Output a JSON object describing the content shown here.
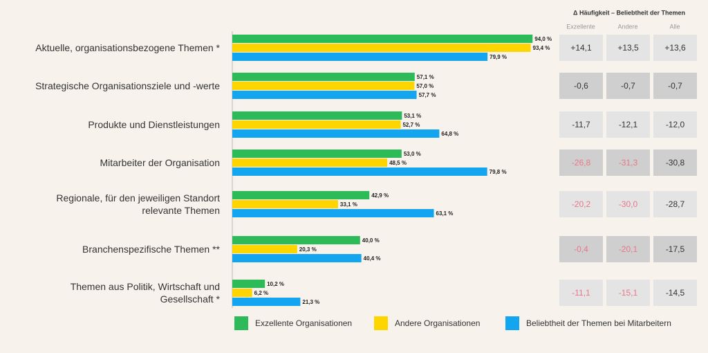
{
  "chart_data": {
    "type": "bar",
    "orientation": "horizontal",
    "categories": [
      "Aktuelle, organisationsbezogene Themen *",
      "Strategische Organisationsziele und -werte",
      "Produkte und Dienstleistungen",
      "Mitarbeiter der Organisation",
      "Regionale, für den jeweiligen Standort\nrelevante Themen",
      "Branchenspezifische Themen **",
      "Themen aus Politik, Wirtschaft und\nGesellschaft *"
    ],
    "xlim": [
      0,
      100
    ],
    "series": [
      {
        "name": "Exzellente Organisationen",
        "color": "#2dbb5a",
        "values": [
          94.0,
          57.1,
          53.1,
          53.0,
          42.9,
          40.0,
          10.2
        ],
        "value_labels": [
          "94,0 %",
          "57,1 %",
          "53,1 %",
          "53,0 %",
          "42,9 %",
          "40,0 %",
          "10,2 %"
        ]
      },
      {
        "name": "Andere Organisationen",
        "color": "#ffd500",
        "values": [
          93.4,
          57.0,
          52.7,
          48.5,
          33.1,
          20.3,
          6.2
        ],
        "value_labels": [
          "93,4 %",
          "57,0 %",
          "52,7 %",
          "48,5 %",
          "33,1 %",
          "20,3 %",
          "6,2 %"
        ]
      },
      {
        "name": "Beliebtheit der Themen bei Mitarbeitern",
        "color": "#13a5f0",
        "values": [
          79.9,
          57.7,
          64.8,
          79.8,
          63.1,
          40.4,
          21.3
        ],
        "value_labels": [
          "79,9 %",
          "57,7 %",
          "64,8 %",
          "79,8 %",
          "63,1 %",
          "40,4 %",
          "21,3 %"
        ]
      }
    ],
    "delta_table": {
      "title": "Δ Häufigkeit – Beliebtheit der Themen",
      "columns": [
        "Exzellente",
        "Andere",
        "Alle"
      ],
      "rows": [
        [
          "+14,1",
          "+13,5",
          "+13,6"
        ],
        [
          "-0,6",
          "-0,7",
          "-0,7"
        ],
        [
          "-11,7",
          "-12,1",
          "-12,0"
        ],
        [
          "-26,8",
          "-31,3",
          "-30,8"
        ],
        [
          "-20,2",
          "-30,0",
          "-28,7"
        ],
        [
          "-0,4",
          "-20,1",
          "-17,5"
        ],
        [
          "-11,1",
          "-15,1",
          "-14,5"
        ]
      ],
      "cell_text_colors": [
        [
          "#333333",
          "#333333",
          "#333333"
        ],
        [
          "#333333",
          "#333333",
          "#333333"
        ],
        [
          "#333333",
          "#333333",
          "#333333"
        ],
        [
          "#e8768a",
          "#e8768a",
          "#333333"
        ],
        [
          "#e8768a",
          "#e8768a",
          "#333333"
        ],
        [
          "#e8768a",
          "#e8768a",
          "#333333"
        ],
        [
          "#e8768a",
          "#e8768a",
          "#333333"
        ]
      ]
    }
  }
}
